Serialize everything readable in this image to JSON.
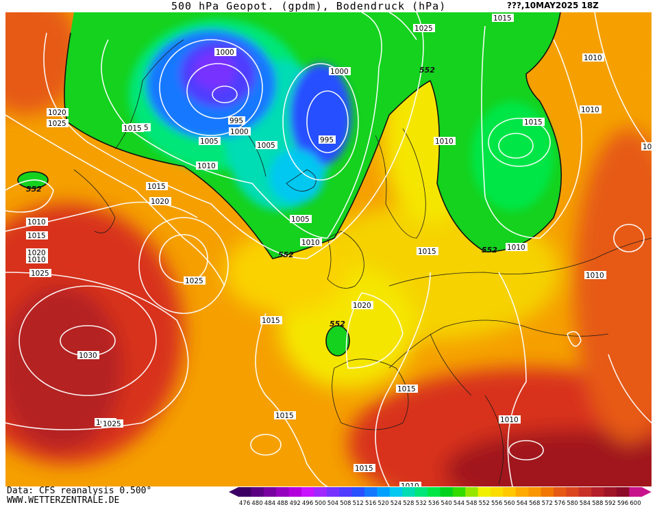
{
  "header": {
    "title": "500 hPa Geopot. (gpdm), Bodendruck (hPa)",
    "run": "???,10MAY2025 18Z"
  },
  "footer": {
    "source": "Data: CFS reanalysis 0.500°",
    "url": "WWW.WETTERZENTRALE.DE"
  },
  "map": {
    "geopotential_label": "552",
    "pressure_labels": [
      "1000",
      "995",
      "1000",
      "1005",
      "995",
      "1005",
      "1010",
      "1000",
      "1015",
      "1025",
      "1020",
      "1025",
      "1015",
      "1025",
      "1010",
      "1015",
      "1020",
      "1010",
      "1015",
      "1020",
      "1025",
      "1025",
      "1015",
      "1030",
      "1025",
      "1005",
      "1010",
      "1015",
      "1010",
      "1010",
      "1015",
      "1015",
      "1010",
      "1010",
      "1010",
      "1015",
      "1020",
      "1015",
      "1015",
      "1010",
      "1015",
      "1010"
    ],
    "colors": {
      "low": "#1a1ae6",
      "mid": "#00cc44",
      "yellow": "#f5e600",
      "orange": "#f5a000",
      "red": "#d8321e",
      "dark_red": "#a0141e"
    }
  },
  "legend": {
    "values": [
      "476",
      "480",
      "484",
      "488",
      "492",
      "496",
      "500",
      "504",
      "508",
      "512",
      "516",
      "520",
      "524",
      "528",
      "532",
      "536",
      "540",
      "544",
      "548",
      "552",
      "556",
      "560",
      "564",
      "568",
      "572",
      "576",
      "580",
      "584",
      "588",
      "592",
      "596",
      "600"
    ],
    "colors": [
      "#3c0064",
      "#5a0082",
      "#7800a0",
      "#9600be",
      "#b400dc",
      "#c814ff",
      "#a028ff",
      "#7832ff",
      "#503cff",
      "#2850ff",
      "#1478ff",
      "#00a0ff",
      "#00c8f0",
      "#00dcb4",
      "#00e678",
      "#00e646",
      "#00d21e",
      "#32dc00",
      "#96e600",
      "#f0f000",
      "#fadc00",
      "#ffc800",
      "#ffaa00",
      "#fa9600",
      "#f07800",
      "#e65a14",
      "#dc461e",
      "#c83228",
      "#b41e28",
      "#a01428",
      "#8c0a28",
      "#c8148c"
    ]
  }
}
